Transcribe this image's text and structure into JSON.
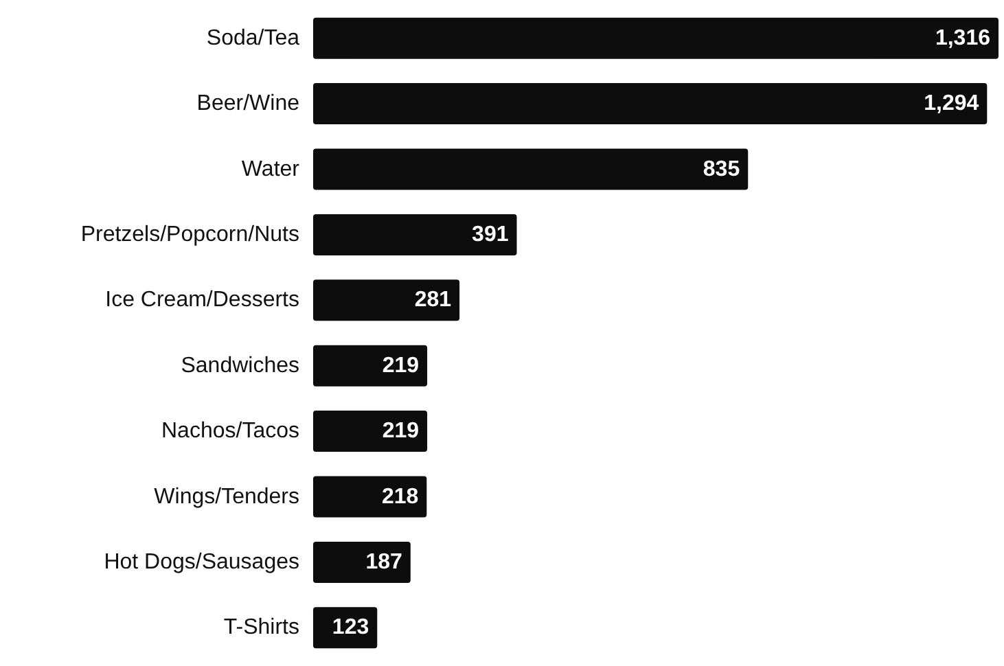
{
  "chart_data": {
    "type": "bar",
    "orientation": "horizontal",
    "categories": [
      "Soda/Tea",
      "Beer/Wine",
      "Water",
      "Pretzels/Popcorn/Nuts",
      "Ice Cream/Desserts",
      "Sandwiches",
      "Nachos/Tacos",
      "Wings/Tenders",
      "Hot Dogs/Sausages",
      "T-Shirts"
    ],
    "values": [
      1316,
      1294,
      835,
      391,
      281,
      219,
      219,
      218,
      187,
      123
    ],
    "value_labels": [
      "1,316",
      "1,294",
      "835",
      "391",
      "281",
      "219",
      "219",
      "218",
      "187",
      "123"
    ],
    "color": "#0d0d0d"
  }
}
